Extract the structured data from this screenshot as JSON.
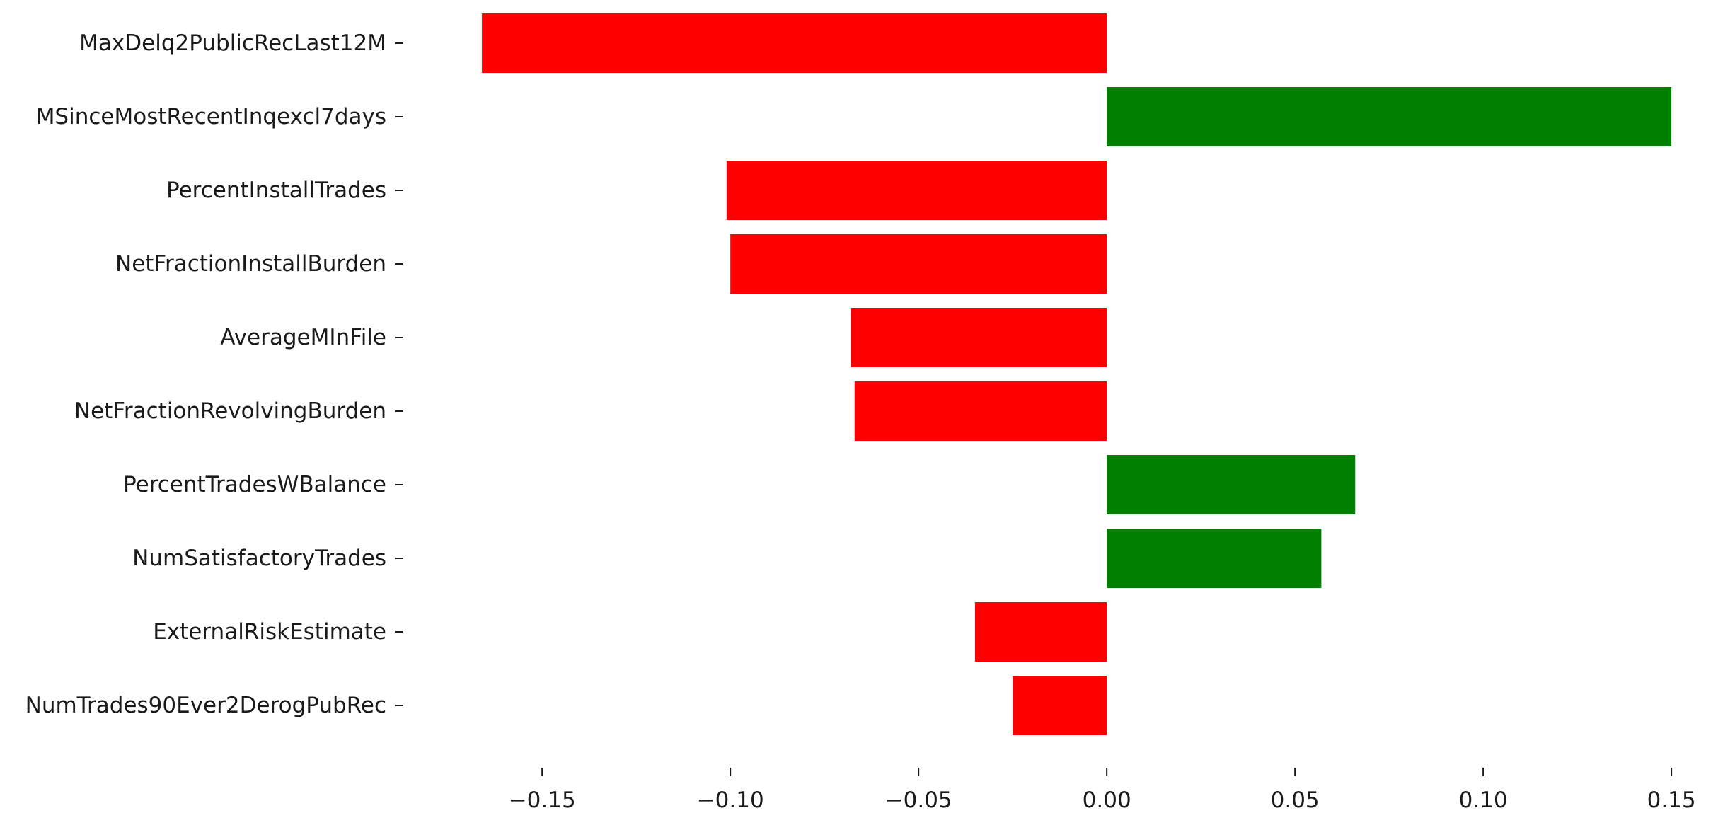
{
  "chart_data": {
    "type": "bar",
    "orientation": "horizontal",
    "title": "",
    "xlabel": "",
    "ylabel": "",
    "categories": [
      "MaxDelq2PublicRecLast12M",
      "MSinceMostRecentInqexcl7days",
      "PercentInstallTrades",
      "NetFractionInstallBurden",
      "AverageMInFile",
      "NetFractionRevolvingBurden",
      "PercentTradesWBalance",
      "NumSatisfactoryTrades",
      "ExternalRiskEstimate",
      "NumTrades90Ever2DerogPubRec"
    ],
    "values": [
      -0.166,
      0.15,
      -0.101,
      -0.1,
      -0.068,
      -0.067,
      0.066,
      0.057,
      -0.035,
      -0.025
    ],
    "xlim": [
      -0.185,
      0.159
    ],
    "xticks": [
      -0.15,
      -0.1,
      -0.05,
      0.0,
      0.05,
      0.1,
      0.15
    ],
    "xtick_labels": [
      "−0.15",
      "−0.10",
      "−0.05",
      "0.00",
      "0.05",
      "0.10",
      "0.15"
    ],
    "colors": {
      "positive": "#008000",
      "negative": "#ff0000"
    },
    "grid": false,
    "legend": "none"
  }
}
